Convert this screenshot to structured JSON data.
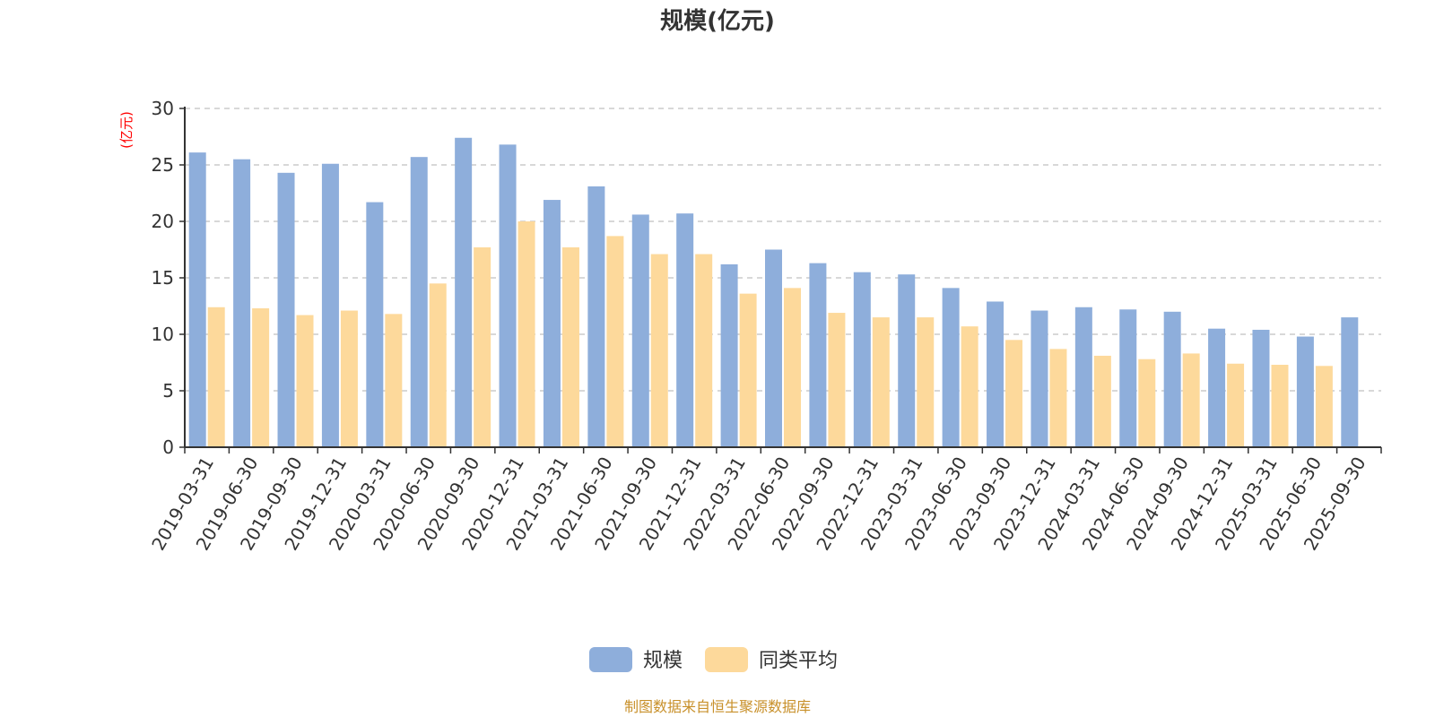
{
  "chart_data": {
    "type": "bar",
    "title": "规模(亿元)",
    "ylabel": "(亿元)",
    "xlabel": "",
    "ylim": [
      0,
      30
    ],
    "yticks": [
      0,
      5,
      10,
      15,
      20,
      25,
      30
    ],
    "grid": true,
    "legend_position": "bottom-center",
    "categories": [
      "2019-03-31",
      "2019-06-30",
      "2019-09-30",
      "2019-12-31",
      "2020-03-31",
      "2020-06-30",
      "2020-09-30",
      "2020-12-31",
      "2021-03-31",
      "2021-06-30",
      "2021-09-30",
      "2021-12-31",
      "2022-03-31",
      "2022-06-30",
      "2022-09-30",
      "2022-12-31",
      "2023-03-31",
      "2023-06-30",
      "2023-09-30",
      "2023-12-31",
      "2024-03-31",
      "2024-06-30",
      "2024-09-30",
      "2024-12-31",
      "2025-03-31",
      "2025-06-30",
      "2025-09-30"
    ],
    "series": [
      {
        "name": "规模",
        "color": "#8eaedb",
        "values": [
          26.1,
          25.5,
          24.3,
          25.1,
          21.7,
          25.7,
          27.4,
          26.8,
          21.9,
          23.1,
          20.6,
          20.7,
          16.2,
          17.5,
          16.3,
          15.5,
          15.3,
          14.1,
          12.9,
          12.1,
          12.4,
          12.2,
          12.0,
          10.5,
          10.4,
          9.8,
          11.5
        ]
      },
      {
        "name": "同类平均",
        "color": "#fdd99b",
        "values": [
          12.4,
          12.3,
          11.7,
          12.1,
          11.8,
          14.5,
          17.7,
          20.0,
          17.7,
          18.7,
          17.1,
          17.1,
          13.6,
          14.1,
          11.9,
          11.5,
          11.5,
          10.7,
          9.5,
          8.7,
          8.1,
          7.8,
          8.3,
          7.4,
          7.3,
          7.2,
          null
        ]
      }
    ]
  },
  "source": "制图数据来自恒生聚源数据库",
  "colors": {
    "axis": "#333333",
    "grid": "#cccccc",
    "unit": "#ff0000",
    "source": "#c8902a"
  }
}
